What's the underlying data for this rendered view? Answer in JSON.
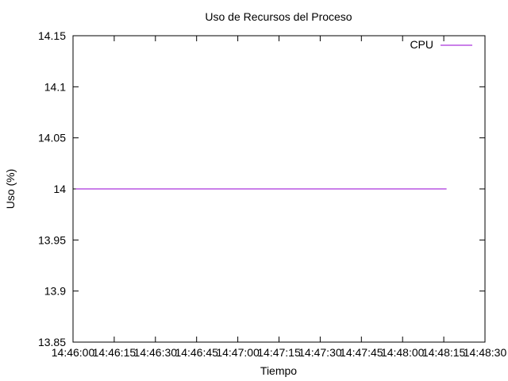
{
  "chart_data": {
    "type": "line",
    "title": "Uso de Recursos del Proceso",
    "xlabel": "Tiempo",
    "ylabel": "Uso (%)",
    "x_tick_labels": [
      "14:46:00",
      "14:46:15",
      "14:46:30",
      "14:46:45",
      "14:47:00",
      "14:47:15",
      "14:47:30",
      "14:47:45",
      "14:48:00",
      "14:48:15",
      "14:48:30"
    ],
    "x_range": [
      "14:46:00",
      "14:48:30"
    ],
    "y_ticks": [
      13.85,
      13.9,
      13.95,
      14,
      14.05,
      14.1,
      14.15
    ],
    "y_tick_labels": [
      "13.85",
      "13.9",
      "13.95",
      "14",
      "14.05",
      "14.1",
      "14.15"
    ],
    "ylim": [
      13.85,
      14.15
    ],
    "grid": false,
    "legend_position": "top-right",
    "series": [
      {
        "name": "CPU",
        "color": "#9400d3",
        "x": [
          "14:46:01",
          "14:48:16"
        ],
        "y": [
          14,
          14
        ]
      }
    ]
  }
}
